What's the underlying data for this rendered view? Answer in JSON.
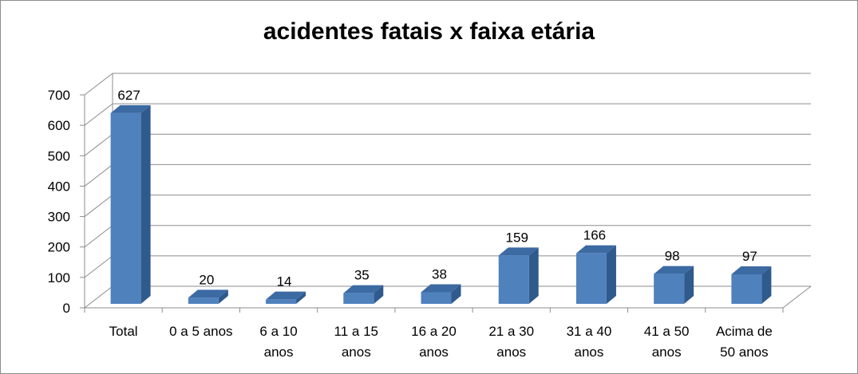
{
  "chart_data": {
    "type": "bar",
    "title": "acidentes fatais x faixa etária",
    "categories": [
      [
        "Total"
      ],
      [
        "0 a 5 anos"
      ],
      [
        "6 a 10",
        "anos"
      ],
      [
        "11 a 15",
        "anos"
      ],
      [
        "16 a 20",
        "anos"
      ],
      [
        "21 a 30",
        "anos"
      ],
      [
        "31 a 40",
        "anos"
      ],
      [
        "41 a 50",
        "anos"
      ],
      [
        "Acima de",
        "50 anos"
      ]
    ],
    "values": [
      627,
      20,
      14,
      35,
      38,
      159,
      166,
      98,
      97
    ],
    "ylim": [
      0,
      700
    ],
    "yticks": [
      0,
      100,
      200,
      300,
      400,
      500,
      600,
      700
    ],
    "xlabel": "",
    "ylabel": "",
    "grid": true,
    "three_d": true,
    "colors": {
      "bar_front": "#4f81bd",
      "bar_side": "#2f5a8c",
      "bar_top": "#3c6aa3",
      "grid": "#8c8c8c"
    }
  }
}
